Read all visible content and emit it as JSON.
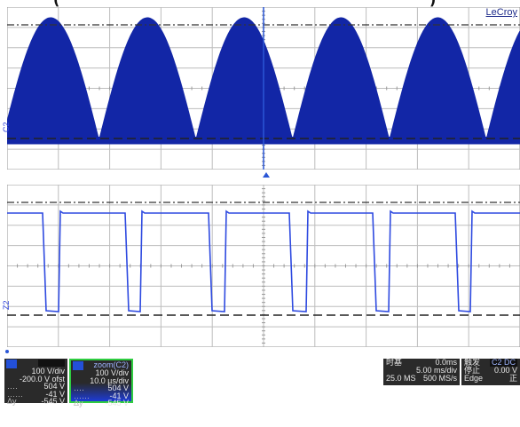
{
  "header": {
    "title_fragment": "(",
    "title_fragment_right": ")"
  },
  "brand": "LeCroy",
  "channel_labels": {
    "upper": "C2",
    "lower": "Z2"
  },
  "panel_c2": {
    "header": "",
    "scale": "100 V/div",
    "offset": "-200.0 V ofst",
    "cursor1_value": "504 V",
    "cursor2_value": "-41 V",
    "delta_label": "Δy",
    "delta_value": "-545 V"
  },
  "panel_zoom": {
    "header": "zoom(C2)",
    "scale": "100 V/div",
    "timebase": "10.0 µs/div",
    "cursor1_value": "504 V",
    "cursor2_value": "-41 V",
    "delta_label": "Δy",
    "delta_value": "-545 V"
  },
  "timebase_panel": {
    "label": "时基",
    "delay": "0.0ms",
    "tdiv": "5.00 ms/div",
    "samples": "25.0 MS",
    "rate": "500 MS/s"
  },
  "trigger_panel": {
    "label": "触发",
    "badge": "C2 DC",
    "mode": "停止",
    "level": "0.00 V",
    "type": "Edge",
    "slope": "正"
  },
  "colors": {
    "trace": "#1226a6",
    "trace_lower": "#2e4ae0",
    "grid": "#bdbdbd",
    "panel_bg": "#2a2a2a",
    "accent_blue": "#2350d8",
    "zoom_border": "#2ecc40"
  }
}
